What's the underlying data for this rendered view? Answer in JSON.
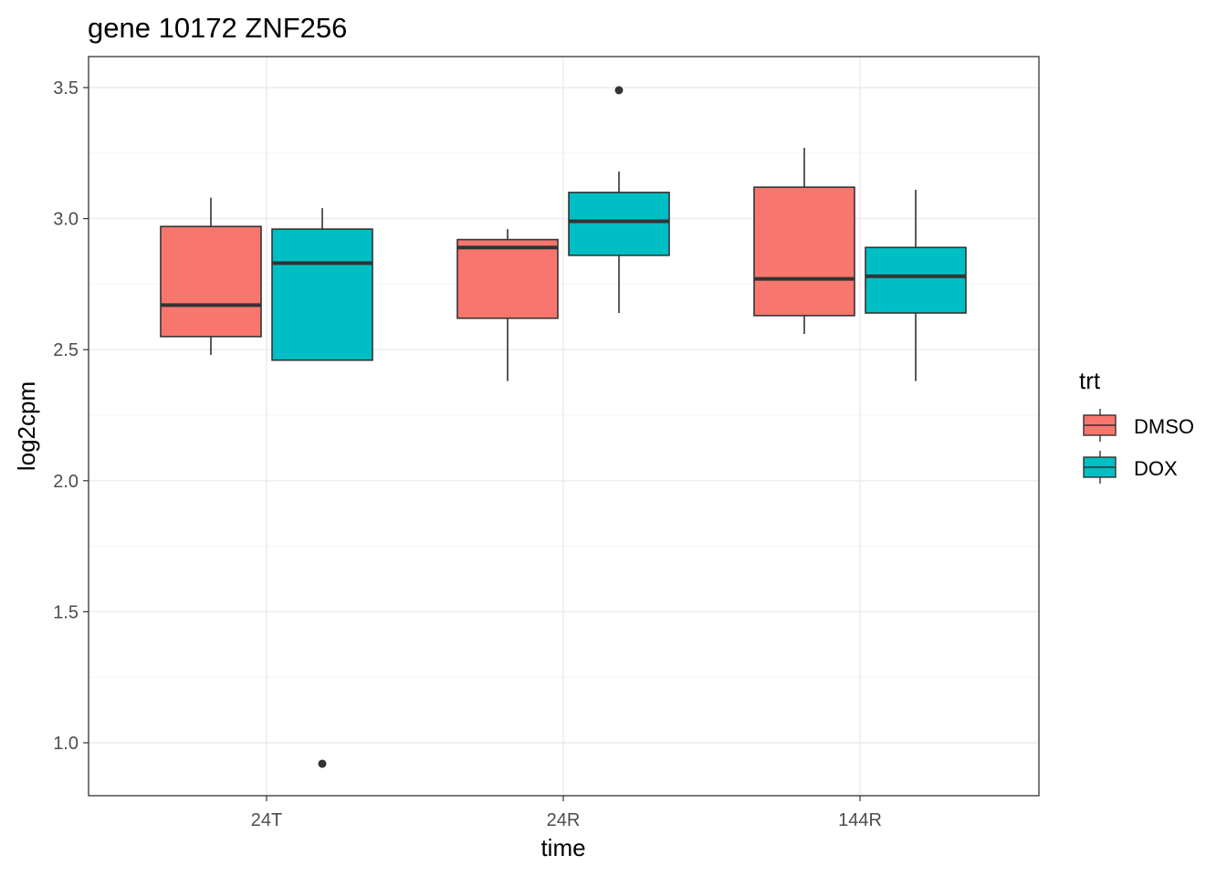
{
  "chart_data": {
    "type": "box",
    "title": "gene 10172 ZNF256",
    "xlabel": "time",
    "ylabel": "log2cpm",
    "categories": [
      "24T",
      "24R",
      "144R"
    ],
    "ylim": [
      0.8,
      3.62
    ],
    "yticks": [
      1.0,
      1.5,
      2.0,
      2.5,
      3.0,
      3.5
    ],
    "ytick_labels": [
      "1.0",
      "1.5",
      "2.0",
      "2.5",
      "3.0",
      "3.5"
    ],
    "grid": true,
    "legend": {
      "title": "trt",
      "position": "right",
      "entries": [
        "DMSO",
        "DOX"
      ]
    },
    "colors": {
      "DMSO": "#F8766D",
      "DOX": "#00BFC4"
    },
    "series": [
      {
        "name": "DMSO",
        "boxes": [
          {
            "category": "24T",
            "lower_whisker": 2.48,
            "q1": 2.55,
            "median": 2.67,
            "q3": 2.97,
            "upper_whisker": 3.08,
            "outliers": []
          },
          {
            "category": "24R",
            "lower_whisker": 2.38,
            "q1": 2.62,
            "median": 2.89,
            "q3": 2.92,
            "upper_whisker": 2.96,
            "outliers": []
          },
          {
            "category": "144R",
            "lower_whisker": 2.56,
            "q1": 2.63,
            "median": 2.77,
            "q3": 3.12,
            "upper_whisker": 3.27,
            "outliers": []
          }
        ]
      },
      {
        "name": "DOX",
        "boxes": [
          {
            "category": "24T",
            "lower_whisker": 2.46,
            "q1": 2.46,
            "median": 2.83,
            "q3": 2.96,
            "upper_whisker": 3.04,
            "outliers": [
              0.92
            ]
          },
          {
            "category": "24R",
            "lower_whisker": 2.64,
            "q1": 2.86,
            "median": 2.99,
            "q3": 3.1,
            "upper_whisker": 3.18,
            "outliers": [
              3.49
            ]
          },
          {
            "category": "144R",
            "lower_whisker": 2.38,
            "q1": 2.64,
            "median": 2.78,
            "q3": 2.89,
            "upper_whisker": 3.11,
            "outliers": []
          }
        ]
      }
    ]
  }
}
